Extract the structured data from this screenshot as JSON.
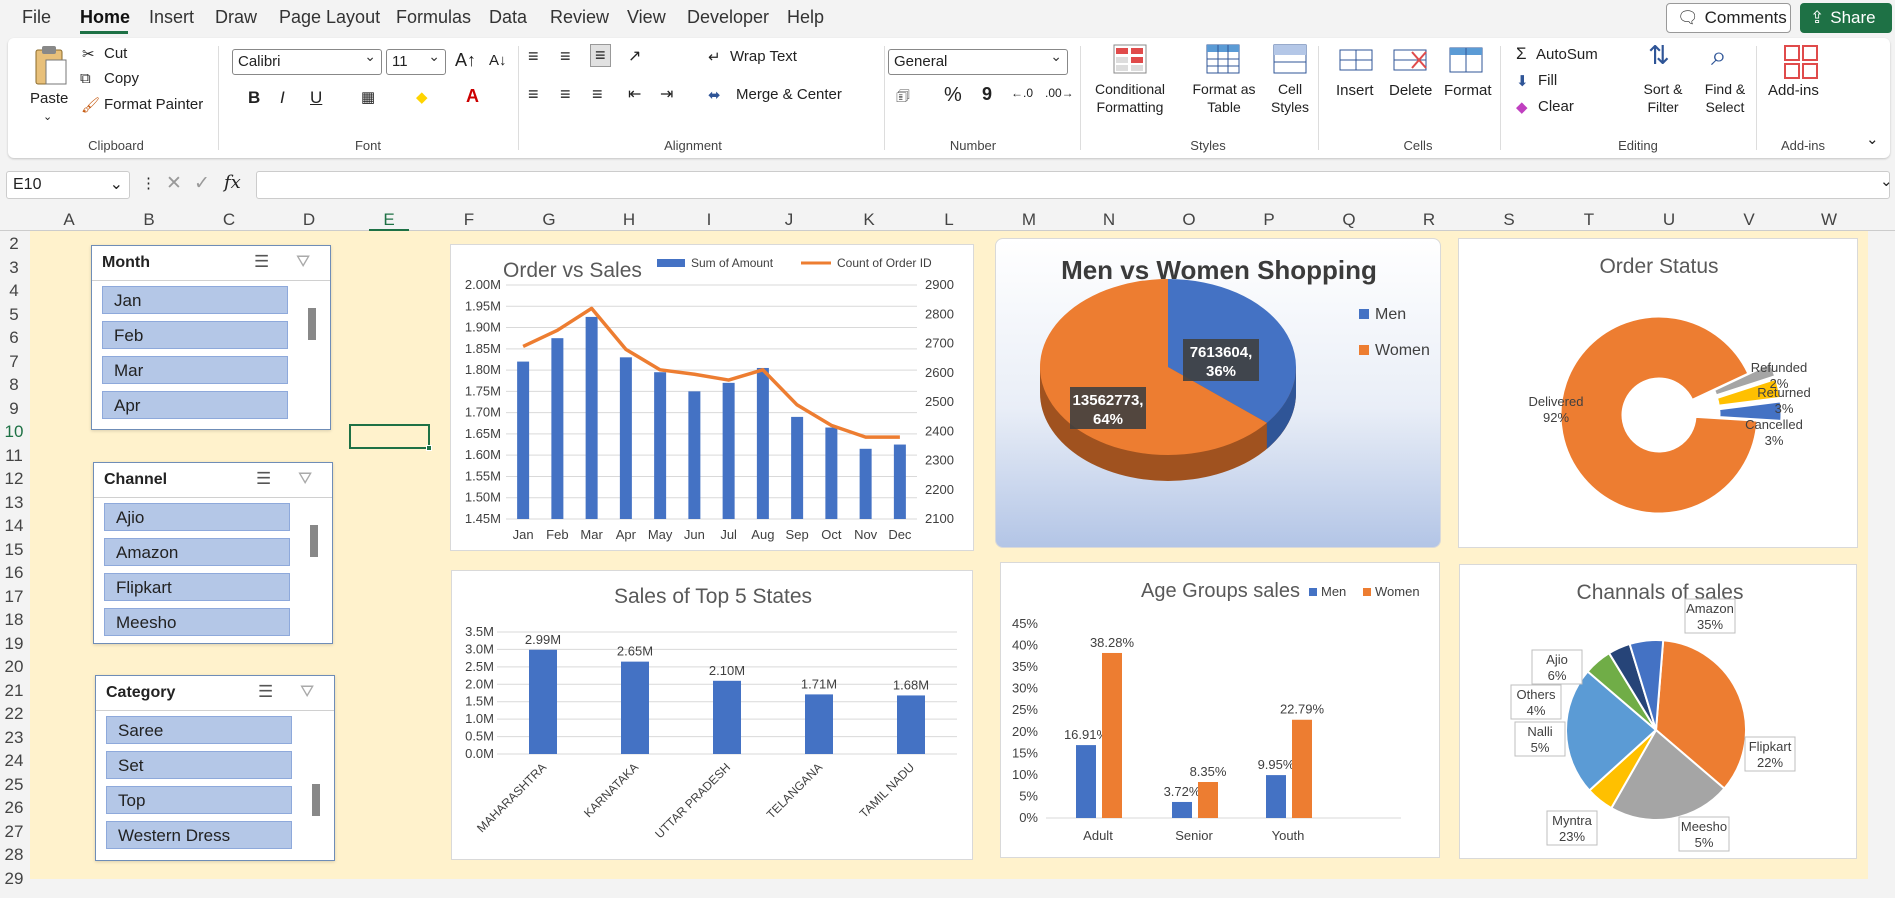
{
  "menu": {
    "items": [
      "File",
      "Home",
      "Insert",
      "Draw",
      "Page Layout",
      "Formulas",
      "Data",
      "Review",
      "View",
      "Developer",
      "Help"
    ],
    "comments": "Comments",
    "share": "Share"
  },
  "ribbon": {
    "clipboard": {
      "label": "Clipboard",
      "paste": "Paste",
      "cut": "Cut",
      "copy": "Copy",
      "format_painter": "Format Painter"
    },
    "font": {
      "label": "Font",
      "name": "Calibri",
      "size": "11",
      "bold": "B",
      "italic": "I",
      "underline": "U"
    },
    "alignment": {
      "label": "Alignment",
      "wrap": "Wrap Text",
      "merge": "Merge & Center"
    },
    "number": {
      "label": "Number",
      "format": "General",
      "percent": "%",
      "comma": "9"
    },
    "styles": {
      "label": "Styles",
      "conditional_1": "Conditional",
      "conditional_2": "Formatting",
      "format_table_1": "Format as",
      "format_table_2": "Table",
      "cell_styles_1": "Cell",
      "cell_styles_2": "Styles"
    },
    "cells": {
      "label": "Cells",
      "insert": "Insert",
      "delete": "Delete",
      "format": "Format"
    },
    "editing": {
      "label": "Editing",
      "autosum": "AutoSum",
      "fill": "Fill",
      "clear": "Clear",
      "sort_1": "Sort &",
      "sort_2": "Filter",
      "find_1": "Find &",
      "find_2": "Select"
    },
    "addins": {
      "label": "Add-ins",
      "addins": "Add-ins"
    }
  },
  "formula_bar": {
    "name_box": "E10",
    "fx": "fx",
    "value": ""
  },
  "sheet": {
    "columns": [
      "A",
      "B",
      "C",
      "D",
      "E",
      "F",
      "G",
      "H",
      "I",
      "J",
      "K",
      "L",
      "M",
      "N",
      "O",
      "P",
      "Q",
      "R",
      "S",
      "T",
      "U",
      "V",
      "W"
    ],
    "rows": [
      "2",
      "3",
      "4",
      "5",
      "6",
      "7",
      "8",
      "9",
      "10",
      "11",
      "12",
      "13",
      "14",
      "15",
      "16",
      "17",
      "18",
      "19",
      "20",
      "21",
      "22",
      "23",
      "24",
      "25",
      "26",
      "27",
      "28",
      "29"
    ]
  },
  "slicers": [
    {
      "title": "Month",
      "items": [
        "Jan",
        "Feb",
        "Mar",
        "Apr"
      ]
    },
    {
      "title": "Channel",
      "items": [
        "Ajio",
        "Amazon",
        "Flipkart",
        "Meesho"
      ]
    },
    {
      "title": "Category",
      "items": [
        "Saree",
        "Set",
        "Top",
        "Western Dress"
      ]
    }
  ],
  "colors": {
    "blue": "#4472c4",
    "orange": "#ed7d31",
    "gray": "#a5a5a5",
    "yellow": "#ffc000",
    "lightblue": "#5b9bd5",
    "green": "#70ad47",
    "navy": "#264478",
    "excel_green": "#1e7145"
  },
  "chart_data": [
    {
      "type": "bar",
      "title": "Order vs Sales",
      "categories": [
        "Jan",
        "Feb",
        "Mar",
        "Apr",
        "May",
        "Jun",
        "Jul",
        "Aug",
        "Sep",
        "Oct",
        "Nov",
        "Dec"
      ],
      "series": [
        {
          "name": "Sum of Amount",
          "type": "bar",
          "axis": "left",
          "values": [
            1820000,
            1875000,
            1925000,
            1830000,
            1795000,
            1750000,
            1770000,
            1805000,
            1690000,
            1665000,
            1615000,
            1625000
          ]
        },
        {
          "name": "Count of Order ID",
          "type": "line",
          "axis": "right",
          "values": [
            2690,
            2745,
            2820,
            2680,
            2610,
            2595,
            2575,
            2610,
            2490,
            2420,
            2380,
            2380
          ]
        }
      ],
      "y_left_ticks": [
        "1.45M",
        "1.50M",
        "1.55M",
        "1.60M",
        "1.65M",
        "1.70M",
        "1.75M",
        "1.80M",
        "1.85M",
        "1.90M",
        "1.95M",
        "2.00M"
      ],
      "ylim_left": [
        1450000,
        2000000
      ],
      "y_right_ticks": [
        "2100",
        "2200",
        "2300",
        "2400",
        "2500",
        "2600",
        "2700",
        "2800",
        "2900"
      ],
      "ylim_right": [
        2100,
        2900
      ],
      "legend": "top"
    },
    {
      "type": "pie",
      "title": "Men vs Women Shopping",
      "labels": [
        "Men",
        "Women"
      ],
      "values": [
        7613604,
        13562773
      ],
      "data_labels": [
        "7613604,\n36%",
        "13562773,\n64%"
      ],
      "legend": "right"
    },
    {
      "type": "pie",
      "title": "Order Status",
      "labels": [
        "Delivered",
        "Refunded",
        "Returned",
        "Cancelled"
      ],
      "values": [
        92,
        2,
        3,
        3
      ],
      "data_labels": [
        "Delivered\n92%",
        "Refunded\n2%",
        "Returned\n3%",
        "Cancelled\n3%"
      ],
      "donut": true
    },
    {
      "type": "bar",
      "title": "Sales of Top 5 States",
      "categories": [
        "MAHARASHTRA",
        "KARNATAKA",
        "UTTAR PRADESH",
        "TELANGANA",
        "TAMIL NADU"
      ],
      "values": [
        2990000,
        2650000,
        2100000,
        1710000,
        1680000
      ],
      "data_labels": [
        "2.99M",
        "2.65M",
        "2.10M",
        "1.71M",
        "1.68M"
      ],
      "y_ticks": [
        "0.0M",
        "0.5M",
        "1.0M",
        "1.5M",
        "2.0M",
        "2.5M",
        "3.0M",
        "3.5M"
      ],
      "ylim": [
        0,
        3500000
      ]
    },
    {
      "type": "bar",
      "title": "Age Groups sales",
      "categories": [
        "Adult",
        "Senior",
        "Youth"
      ],
      "series": [
        {
          "name": "Men",
          "values": [
            16.91,
            3.72,
            9.95
          ],
          "labels": [
            "16.91%",
            "3.72%",
            "9.95%"
          ]
        },
        {
          "name": "Women",
          "values": [
            38.28,
            8.35,
            22.79
          ],
          "labels": [
            "38.28%",
            "8.35%",
            "22.79%"
          ]
        }
      ],
      "y_ticks": [
        "0%",
        "5%",
        "10%",
        "15%",
        "20%",
        "25%",
        "30%",
        "35%",
        "40%",
        "45%"
      ],
      "ylim": [
        0,
        45
      ],
      "legend": "top"
    },
    {
      "type": "pie",
      "title": "Channals of sales",
      "labels": [
        "Amazon",
        "Flipkart",
        "Meesho",
        "Myntra",
        "Nalli",
        "Others",
        "Ajio"
      ],
      "values": [
        35,
        22,
        5,
        23,
        5,
        4,
        6
      ],
      "data_labels": [
        "Amazon\n35%",
        "Flipkart\n22%",
        "Meesho\n5%",
        "Myntra\n23%",
        "Nalli\n5%",
        "Others\n4%",
        "Ajio\n6%"
      ]
    }
  ]
}
